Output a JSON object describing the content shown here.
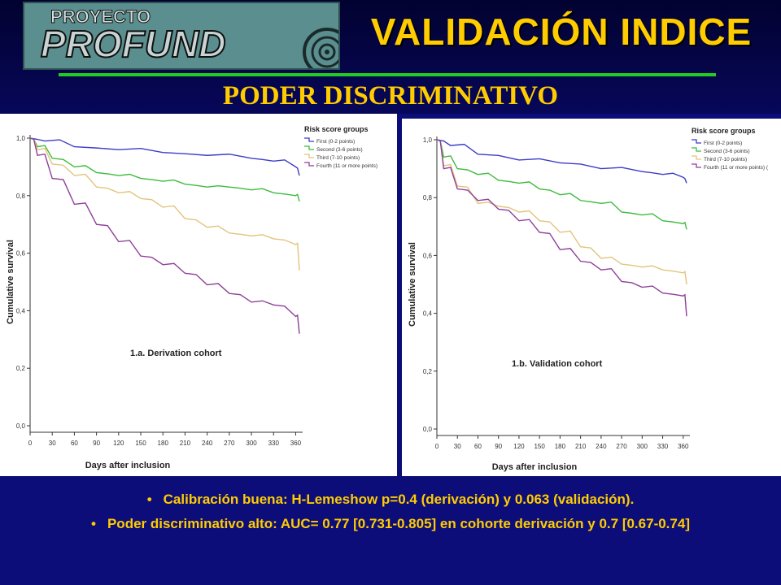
{
  "header": {
    "logo_line1": "PROYECTO",
    "logo_line2": "PROFUND",
    "title": "VALIDACIÓN INDICE",
    "subtitle": "PODER DISCRIMINATIVO"
  },
  "colors": {
    "first": "#3c3cc8",
    "second": "#3dbb3d",
    "third": "#e2c47c",
    "fourth": "#8f3f9a",
    "accent_yellow": "#ffcc00",
    "background": "#0d0d7a"
  },
  "chart_data": [
    {
      "type": "line",
      "annotation": "1.a. Derivation cohort",
      "xlabel": "Days after inclusion",
      "ylabel": "Cumulative survival",
      "xlim": [
        0,
        365
      ],
      "ylim": [
        0,
        1.0
      ],
      "x_ticks": [
        "0",
        "30",
        "60",
        "90",
        "120",
        "150",
        "180",
        "210",
        "240",
        "270",
        "300",
        "330",
        "360"
      ],
      "y_ticks": [
        "0,0",
        "0,2",
        "0,4",
        "0,6",
        "0,8",
        "1,0"
      ],
      "legend_title": "Risk score groups",
      "legend_position": "top-right",
      "series": [
        {
          "name": "First (0-2 points)",
          "x": [
            0,
            20,
            60,
            120,
            180,
            240,
            300,
            330,
            360,
            365
          ],
          "values": [
            1.0,
            0.99,
            0.97,
            0.96,
            0.95,
            0.94,
            0.93,
            0.92,
            0.9,
            0.87
          ]
        },
        {
          "name": "Second (3-6 points)",
          "x": [
            0,
            10,
            30,
            60,
            90,
            120,
            150,
            180,
            210,
            240,
            270,
            300,
            330,
            360,
            365
          ],
          "values": [
            1.0,
            0.97,
            0.93,
            0.9,
            0.88,
            0.87,
            0.86,
            0.85,
            0.84,
            0.83,
            0.83,
            0.82,
            0.81,
            0.8,
            0.78
          ]
        },
        {
          "name": "Third (7-10 points)",
          "x": [
            0,
            10,
            30,
            60,
            90,
            120,
            150,
            180,
            210,
            240,
            270,
            300,
            330,
            360,
            365
          ],
          "values": [
            1.0,
            0.96,
            0.91,
            0.87,
            0.83,
            0.81,
            0.79,
            0.76,
            0.72,
            0.69,
            0.67,
            0.66,
            0.65,
            0.63,
            0.54
          ]
        },
        {
          "name": "Fourth (11 or more points)",
          "x": [
            0,
            10,
            30,
            60,
            90,
            120,
            150,
            180,
            210,
            240,
            270,
            300,
            330,
            360,
            365
          ],
          "values": [
            1.0,
            0.94,
            0.86,
            0.77,
            0.7,
            0.64,
            0.59,
            0.56,
            0.53,
            0.49,
            0.46,
            0.43,
            0.42,
            0.38,
            0.32
          ]
        }
      ]
    },
    {
      "type": "line",
      "annotation": "1.b. Validation cohort",
      "xlabel": "Days after inclusion",
      "ylabel": "Cumulative survival",
      "xlim": [
        0,
        365
      ],
      "ylim": [
        0,
        1.0
      ],
      "x_ticks": [
        "0",
        "30",
        "60",
        "90",
        "120",
        "150",
        "180",
        "210",
        "240",
        "270",
        "300",
        "330",
        "360"
      ],
      "y_ticks": [
        "0,0",
        "0,2",
        "0,4",
        "0,6",
        "0,8",
        "1,0"
      ],
      "legend_title": "Risk score groups",
      "legend_position": "top-right",
      "series": [
        {
          "name": "First (0-2 points)",
          "x": [
            0,
            20,
            60,
            120,
            180,
            240,
            300,
            330,
            360,
            365
          ],
          "values": [
            1.0,
            0.98,
            0.95,
            0.93,
            0.92,
            0.9,
            0.89,
            0.88,
            0.87,
            0.85
          ]
        },
        {
          "name": "Second (3-6 points)",
          "x": [
            0,
            10,
            30,
            60,
            90,
            120,
            150,
            180,
            210,
            240,
            270,
            300,
            330,
            360,
            365
          ],
          "values": [
            1.0,
            0.94,
            0.9,
            0.88,
            0.86,
            0.85,
            0.83,
            0.81,
            0.79,
            0.78,
            0.75,
            0.74,
            0.72,
            0.71,
            0.69
          ]
        },
        {
          "name": "Third (7-10 points)",
          "x": [
            0,
            10,
            30,
            60,
            90,
            120,
            150,
            180,
            210,
            240,
            270,
            300,
            330,
            360,
            365
          ],
          "values": [
            1.0,
            0.91,
            0.84,
            0.78,
            0.77,
            0.75,
            0.72,
            0.68,
            0.63,
            0.59,
            0.57,
            0.56,
            0.55,
            0.54,
            0.5
          ]
        },
        {
          "name": "Fourth (11 or more points) (",
          "x": [
            0,
            10,
            30,
            60,
            90,
            120,
            150,
            180,
            210,
            240,
            270,
            300,
            330,
            360,
            365
          ],
          "values": [
            1.0,
            0.9,
            0.83,
            0.79,
            0.76,
            0.72,
            0.68,
            0.62,
            0.58,
            0.55,
            0.51,
            0.49,
            0.47,
            0.46,
            0.39
          ]
        }
      ]
    }
  ],
  "bullets": [
    "Calibración buena: H-Lemeshow p=0.4 (derivación) y 0.063 (validación).",
    "Poder discriminativo alto: AUC= 0.77 [0.731-0.805] en cohorte derivación y 0.7 [0.67-0.74]"
  ]
}
